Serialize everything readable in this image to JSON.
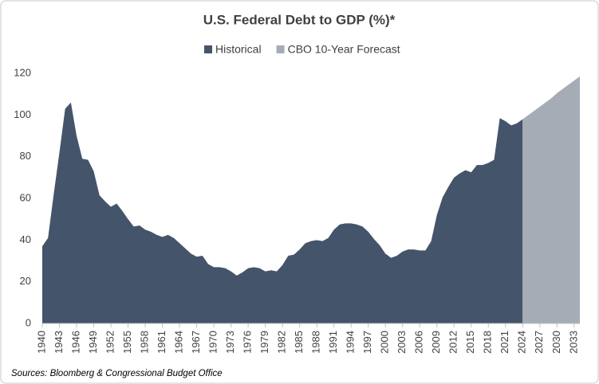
{
  "chart_data": {
    "type": "area",
    "title": "U.S. Federal Debt to GDP (%)*",
    "source": "Sources: Bloomberg & Congressional Budget Office",
    "x": [
      1940,
      1941,
      1942,
      1943,
      1944,
      1945,
      1946,
      1947,
      1948,
      1949,
      1950,
      1951,
      1952,
      1953,
      1954,
      1955,
      1956,
      1957,
      1958,
      1959,
      1960,
      1961,
      1962,
      1963,
      1964,
      1965,
      1966,
      1967,
      1968,
      1969,
      1970,
      1971,
      1972,
      1973,
      1974,
      1975,
      1976,
      1977,
      1978,
      1979,
      1980,
      1981,
      1982,
      1983,
      1984,
      1985,
      1986,
      1987,
      1988,
      1989,
      1990,
      1991,
      1992,
      1993,
      1994,
      1995,
      1996,
      1997,
      1998,
      1999,
      2000,
      2001,
      2002,
      2003,
      2004,
      2005,
      2006,
      2007,
      2008,
      2009,
      2010,
      2011,
      2012,
      2013,
      2014,
      2015,
      2016,
      2017,
      2018,
      2019,
      2020,
      2021,
      2022,
      2023,
      2024,
      2025,
      2026,
      2027,
      2028,
      2029,
      2030,
      2031,
      2032,
      2033,
      2034
    ],
    "series": [
      {
        "name": "Historical",
        "color": "#44546a",
        "values": [
          37,
          41,
          62,
          82,
          103,
          106,
          90,
          79,
          78.5,
          73,
          61.5,
          58.5,
          56,
          57.5,
          54,
          50,
          46.5,
          47,
          45,
          44,
          42.5,
          41.5,
          42.5,
          41,
          38.5,
          36,
          33.5,
          32,
          32.5,
          28.5,
          27,
          27,
          26.5,
          25,
          23,
          24.5,
          26.5,
          27,
          26.5,
          25,
          25.5,
          25,
          28,
          32.5,
          33,
          35.5,
          38.5,
          39.5,
          40,
          39.5,
          41,
          45,
          47.5,
          48,
          48,
          47.5,
          46.5,
          44,
          40.5,
          37.5,
          33.5,
          31.5,
          32.5,
          34.5,
          35.5,
          35.5,
          35,
          35,
          39.5,
          52,
          60.5,
          65.5,
          70,
          72,
          73.5,
          72.5,
          76,
          76,
          77,
          78.5,
          98.5,
          97,
          95,
          96,
          98,
          null,
          null,
          null,
          null,
          null,
          null,
          null,
          null,
          null,
          null
        ]
      },
      {
        "name": "CBO 10-Year Forecast",
        "color": "#a5acb5",
        "values": [
          null,
          null,
          null,
          null,
          null,
          null,
          null,
          null,
          null,
          null,
          null,
          null,
          null,
          null,
          null,
          null,
          null,
          null,
          null,
          null,
          null,
          null,
          null,
          null,
          null,
          null,
          null,
          null,
          null,
          null,
          null,
          null,
          null,
          null,
          null,
          null,
          null,
          null,
          null,
          null,
          null,
          null,
          null,
          null,
          null,
          null,
          null,
          null,
          null,
          null,
          null,
          null,
          null,
          null,
          null,
          null,
          null,
          null,
          null,
          null,
          null,
          null,
          null,
          null,
          null,
          null,
          null,
          null,
          null,
          null,
          null,
          null,
          null,
          null,
          null,
          null,
          null,
          null,
          null,
          null,
          null,
          null,
          null,
          null,
          98,
          100,
          102,
          104,
          106,
          108,
          110.5,
          112.5,
          114.5,
          116.5,
          118.5
        ]
      }
    ],
    "xlim": [
      1940,
      2034
    ],
    "xticks": [
      1940,
      1943,
      1946,
      1949,
      1952,
      1955,
      1958,
      1961,
      1964,
      1967,
      1970,
      1973,
      1976,
      1979,
      1982,
      1985,
      1988,
      1991,
      1994,
      1997,
      2000,
      2003,
      2006,
      2009,
      2012,
      2015,
      2018,
      2021,
      2024,
      2027,
      2030,
      2033
    ],
    "ylim": [
      0,
      120
    ],
    "yticks": [
      0,
      20,
      40,
      60,
      80,
      100,
      120
    ],
    "grid": false,
    "legend": "top"
  }
}
